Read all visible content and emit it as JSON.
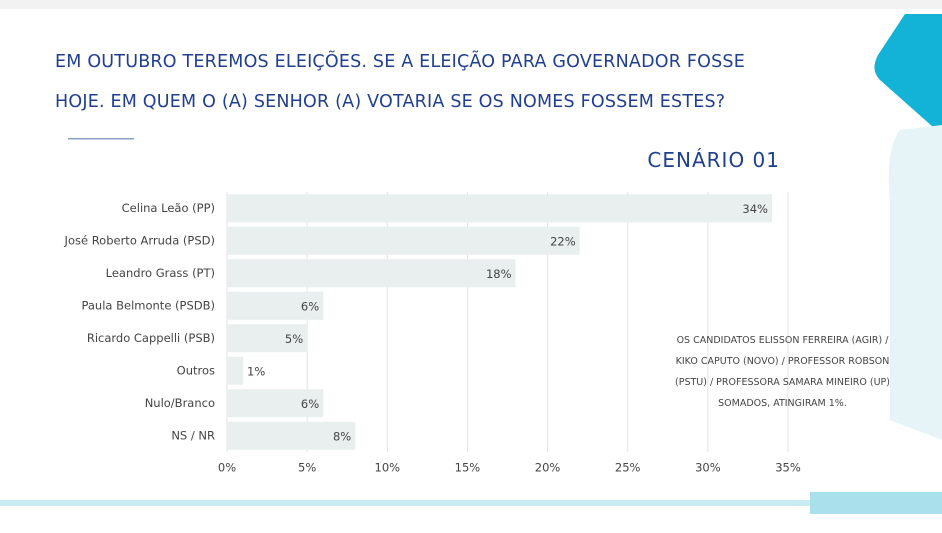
{
  "chart_data": {
    "type": "bar",
    "title": "EM OUTUBRO TEREMOS ELEIÇÕES. SE A ELEIÇÃO PARA GOVERNADOR FOSSE HOJE. EM QUEM O (A) SENHOR (A) VOTARIA SE OS NOMES FOSSEM ESTES?",
    "subtitle": "CENÁRIO 01",
    "categories": [
      "Celina Leão (PP)",
      "José Roberto Arruda (PSD)",
      "Leandro Grass (PT)",
      "Paula Belmonte (PSDB)",
      "Ricardo Cappelli (PSB)",
      "Outros",
      "Nulo/Branco",
      "NS / NR"
    ],
    "values": [
      34,
      22,
      18,
      6,
      5,
      1,
      6,
      8
    ],
    "value_labels": [
      "34%",
      "22%",
      "18%",
      "6%",
      "5%",
      "1%",
      "6%",
      "8%"
    ],
    "color": "#e8efee",
    "xlim": [
      0,
      35
    ],
    "xticks": [
      {
        "value": 0,
        "label": "0%"
      },
      {
        "value": 5,
        "label": "5%"
      },
      {
        "value": 10,
        "label": "10%"
      },
      {
        "value": 15,
        "label": "15%"
      },
      {
        "value": 20,
        "label": "20%"
      },
      {
        "value": 25,
        "label": "25%"
      },
      {
        "value": 30,
        "label": "30%"
      },
      {
        "value": 35,
        "label": "35%"
      }
    ],
    "grid": true,
    "annotation": "OS CANDIDATOS ELISSON FERREIRA (AGIR) / KIKO CAPUTO (NOVO) / PROFESSOR ROBSON (PSTU) / PROFESSORA SAMARA MINEIRO (UP) SOMADOS, ATINGIRAM 1%."
  }
}
